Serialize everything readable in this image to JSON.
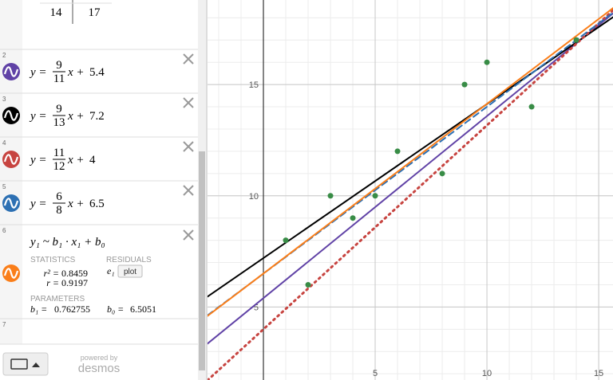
{
  "table": {
    "last_row": [
      14,
      17
    ]
  },
  "expressions": [
    {
      "number": 2,
      "lhs": "y =",
      "numerator": 9,
      "denominator": 11,
      "mid": "x +",
      "intercept": 5.4,
      "color": "#6042a6",
      "style": "solid"
    },
    {
      "number": 3,
      "lhs": "y =",
      "numerator": 9,
      "denominator": 13,
      "mid": "x +",
      "intercept": 7.2,
      "color": "#000000",
      "style": "solid"
    },
    {
      "number": 4,
      "lhs": "y =",
      "numerator": 11,
      "denominator": 12,
      "mid": "x +",
      "intercept": 4,
      "color": "#c74440",
      "style": "dotted"
    },
    {
      "number": 5,
      "lhs": "y =",
      "numerator": 6,
      "denominator": 8,
      "mid": "x +",
      "intercept": 6.5,
      "color": "#2d70b3",
      "style": "dashed"
    }
  ],
  "regression": {
    "number": 6,
    "formula": "y₁ ~ b₁ · x₁ + b₀",
    "color": "#fa7e19",
    "statistics_heading": "STATISTICS",
    "residuals_heading": "RESIDUALS",
    "r_squared": {
      "label": "r² =",
      "value": 0.8459
    },
    "r": {
      "label": "r =",
      "value": 0.9197
    },
    "residual_variable": "e₁",
    "plot_button": "plot",
    "parameters_heading": "PARAMETERS",
    "b1": {
      "label": "b₁ =",
      "value": 0.762755
    },
    "b0": {
      "label": "b₀ =",
      "value": 6.5051
    }
  },
  "empty_row": {
    "number": 7
  },
  "footer": {
    "powered_by": "powered by",
    "brand": "desmos"
  },
  "graph": {
    "xlim": [
      -2.5,
      15.64
    ],
    "ylim": [
      1.72,
      18.8
    ],
    "xticks": [
      5,
      10,
      15
    ],
    "yticks": [
      5,
      10,
      15
    ],
    "minor_step": 1,
    "points": {
      "x": [
        1,
        2,
        3,
        4,
        5,
        6,
        8,
        9,
        10,
        12,
        14
      ],
      "y": [
        8,
        6,
        10,
        9,
        10,
        12,
        11,
        15,
        16,
        14,
        17
      ],
      "color": "#388c46"
    }
  }
}
